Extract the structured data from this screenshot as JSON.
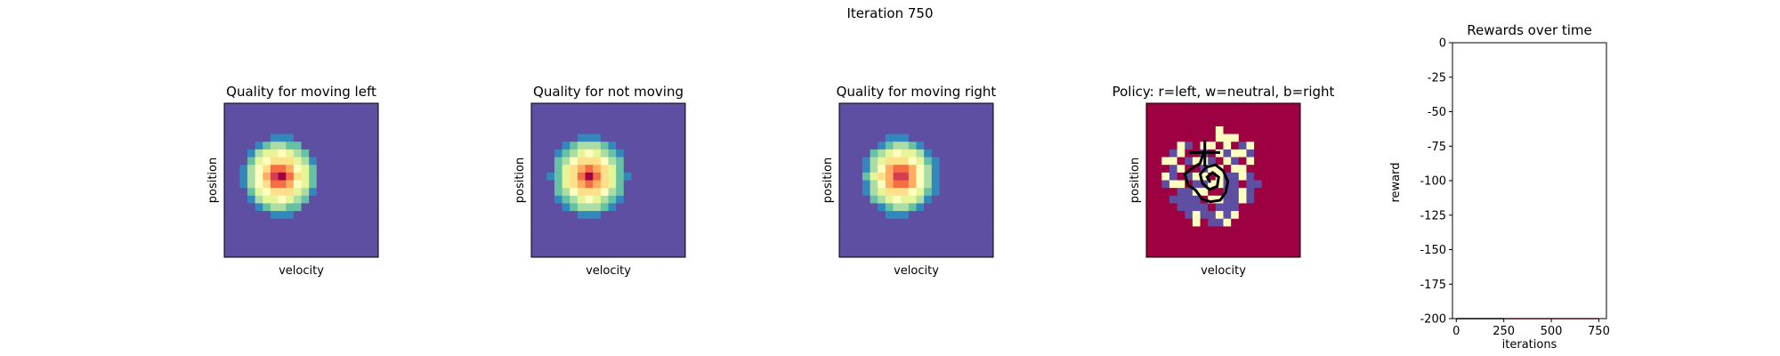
{
  "suptitle": "Iteration 750",
  "colormap": [
    "#9e0142",
    "#d53e4f",
    "#f46d43",
    "#fdae61",
    "#fee08b",
    "#ffffbf",
    "#e6f598",
    "#abdda4",
    "#66c2a5",
    "#3288bd",
    "#5e4fa2"
  ],
  "chart_data": [
    {
      "type": "heatmap",
      "title": "Quality for moving left",
      "xlabel": "velocity",
      "ylabel": "position",
      "grid": [
        20,
        20
      ],
      "peak": {
        "cx": 7.2,
        "cy": 9.5,
        "radius": 5.2
      }
    },
    {
      "type": "heatmap",
      "title": "Quality for not moving",
      "xlabel": "velocity",
      "ylabel": "position",
      "grid": [
        20,
        20
      ],
      "peak": {
        "cx": 7.5,
        "cy": 9.5,
        "radius": 5.2
      }
    },
    {
      "type": "heatmap",
      "title": "Quality for moving right",
      "xlabel": "velocity",
      "ylabel": "position",
      "grid": [
        20,
        20
      ],
      "peak": {
        "cx": 7.9,
        "cy": 9.5,
        "radius": 5.2
      }
    },
    {
      "type": "heatmap",
      "title": "Policy: r=left, w=neutral, b=right",
      "xlabel": "velocity",
      "ylabel": "position",
      "grid": [
        20,
        20
      ],
      "colors": {
        "r": "#9e0142",
        "w": "#ffffbf",
        "b": "#5e4fa2"
      },
      "policy": [
        "rrrrrrrrrrrrrrrrrrrr",
        "rrrrrrrrrrrrrrrrrrrr",
        "rrrrrrrrrrrrrrrrrrrr",
        "rrrrrrrrrwrrrrrrrrrr",
        "rrrrrrrrrwwwrrrrrrrr",
        "rrrrwbrwwrwrbwrrrrrr",
        "rrrbwrrbrwbwwbrrrrrr",
        "rrwwrbwwbrwbrwrrrrrr",
        "rrrbwrrbwwrwwrrrrrrr",
        "rrwbrbwwrwbbwbrrrrrr",
        "rrbwwrbbwwbbrbbrrrrr",
        "rrrrbbwwrrbbwbrrrrrr",
        "rrrbbbbrwwbbwbrrrrrr",
        "rrrrbbbbrbbbrrrrrrrr",
        "rrrrrbwbbwbwrrrrrrrr",
        "rrrrrrwrbbwrrrrrrrrr",
        "rrrrrrrrrrrrrrrrrrrr",
        "rrrrrrrrrrrrrrrrrrrr",
        "rrrrrrrrrrrrrrrrrrrr",
        "rrrrrrrrrrrrrrrrrrrr"
      ],
      "trajectory_color": "#000000"
    },
    {
      "type": "line",
      "title": "Rewards over time",
      "xlabel": "iterations",
      "ylabel": "reward",
      "xlim": [
        -20,
        790
      ],
      "ylim": [
        -200,
        0
      ],
      "xticks": [
        0,
        250,
        500,
        750
      ],
      "yticks": [
        0,
        -25,
        -50,
        -75,
        -100,
        -125,
        -150,
        -175,
        -200
      ],
      "series": [
        {
          "color": "#000000",
          "x": [
            0,
            250
          ],
          "y": [
            -200,
            -200
          ]
        },
        {
          "color": "#d62728",
          "x": [
            250,
            750
          ],
          "y": [
            -200,
            -200
          ]
        }
      ]
    }
  ]
}
